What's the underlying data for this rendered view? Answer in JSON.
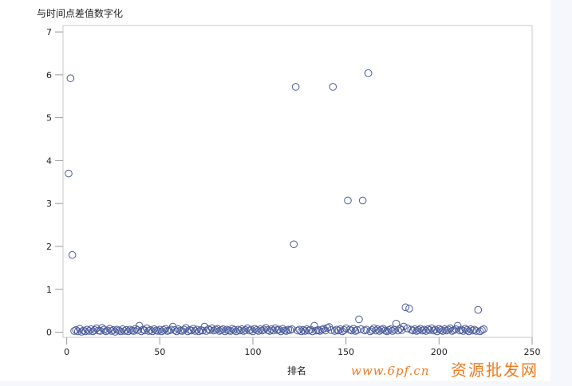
{
  "chart_data": {
    "type": "scatter",
    "title": "与时间点差值数字化",
    "xlabel": "排名",
    "ylabel": "",
    "xlim": [
      -2,
      250
    ],
    "ylim": [
      -0.12,
      7.15
    ],
    "xticks": [
      0,
      50,
      100,
      150,
      200,
      250
    ],
    "yticks": [
      0,
      1,
      2,
      3,
      4,
      5,
      6,
      7
    ],
    "grid": false,
    "marker": "open-circle",
    "marker_color": "#4a5a9a",
    "x_start": 1,
    "y": [
      3.7,
      5.92,
      1.8,
      0.03,
      0.05,
      0.02,
      0.08,
      0.01,
      0.04,
      0.02,
      0.06,
      0.03,
      0.07,
      0.02,
      0.05,
      0.09,
      0.04,
      0.03,
      0.1,
      0.06,
      0.02,
      0.04,
      0.08,
      0.03,
      0.05,
      0.01,
      0.06,
      0.04,
      0.02,
      0.07,
      0.03,
      0.05,
      0.02,
      0.06,
      0.04,
      0.03,
      0.08,
      0.05,
      0.15,
      0.02,
      0.06,
      0.04,
      0.09,
      0.03,
      0.05,
      0.02,
      0.07,
      0.04,
      0.03,
      0.06,
      0.02,
      0.05,
      0.08,
      0.03,
      0.04,
      0.06,
      0.13,
      0.05,
      0.02,
      0.07,
      0.04,
      0.03,
      0.06,
      0.1,
      0.02,
      0.05,
      0.04,
      0.08,
      0.03,
      0.06,
      0.02,
      0.05,
      0.04,
      0.13,
      0.03,
      0.07,
      0.05,
      0.09,
      0.04,
      0.06,
      0.08,
      0.03,
      0.05,
      0.07,
      0.02,
      0.06,
      0.04,
      0.03,
      0.08,
      0.05,
      0.02,
      0.06,
      0.04,
      0.07,
      0.03,
      0.05,
      0.09,
      0.04,
      0.06,
      0.02,
      0.08,
      0.05,
      0.03,
      0.07,
      0.04,
      0.06,
      0.1,
      0.05,
      0.03,
      0.07,
      0.04,
      0.09,
      0.05,
      0.06,
      0.02,
      0.08,
      0.04,
      0.03,
      0.06,
      0.05,
      0.07,
      2.05,
      5.72,
      0.04,
      0.06,
      0.02,
      0.05,
      0.03,
      0.07,
      0.04,
      0.06,
      0.02,
      0.15,
      0.04,
      0.05,
      0.03,
      0.06,
      0.08,
      0.04,
      0.1,
      0.12,
      0.05,
      5.72,
      0.03,
      0.06,
      0.04,
      0.07,
      0.02,
      0.05,
      0.09,
      3.07,
      0.06,
      0.04,
      0.08,
      0.03,
      0.05,
      0.3,
      0.07,
      3.07,
      0.04,
      0.06,
      6.04,
      0.02,
      0.05,
      0.09,
      0.04,
      0.07,
      0.03,
      0.06,
      0.08,
      0.04,
      0.02,
      0.05,
      0.07,
      0.03,
      0.06,
      0.2,
      0.04,
      0.08,
      0.05,
      0.13,
      0.58,
      0.09,
      0.55,
      0.06,
      0.04,
      0.07,
      0.03,
      0.05,
      0.08,
      0.04,
      0.06,
      0.03,
      0.07,
      0.05,
      0.09,
      0.04,
      0.06,
      0.02,
      0.08,
      0.05,
      0.03,
      0.07,
      0.04,
      0.06,
      0.09,
      0.03,
      0.05,
      0.07,
      0.15,
      0.04,
      0.06,
      0.03,
      0.08,
      0.05,
      0.02,
      0.07,
      0.04,
      0.06,
      0.03,
      0.52,
      0.02,
      0.05,
      0.07
    ]
  },
  "watermark": {
    "line1": "资源批发网",
    "line2": "www.6pf.cn",
    "color": "#f07a1e"
  }
}
